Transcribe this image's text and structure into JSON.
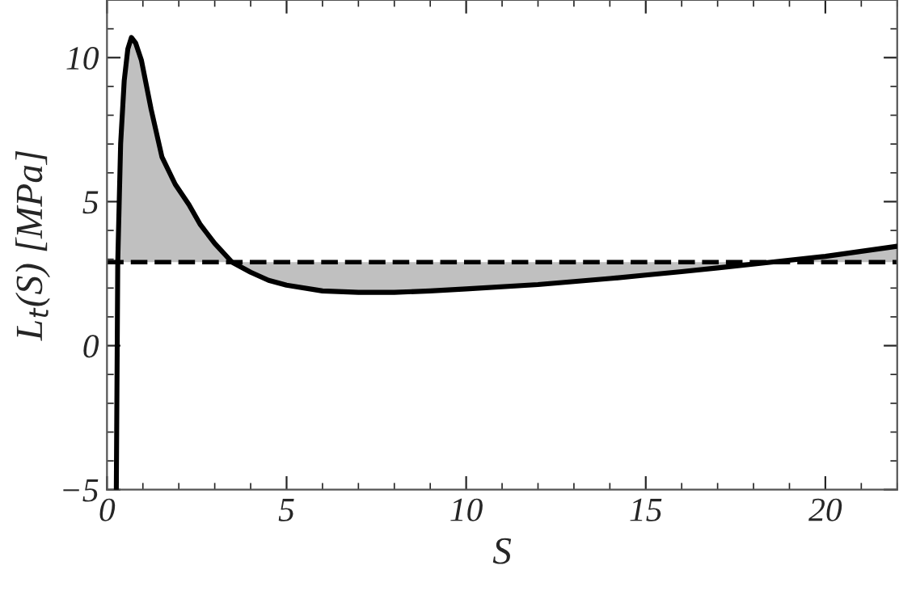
{
  "chart_data": {
    "type": "line",
    "xlabel": "S",
    "ylabel": "L$_{t}$(S) [MPa]",
    "xlim": [
      0,
      22
    ],
    "ylim": [
      -5,
      12
    ],
    "xticks": [
      0,
      5,
      10,
      15,
      20
    ],
    "yticks": [
      -5,
      0,
      5,
      10
    ],
    "series": [
      {
        "color": "#000000",
        "x": [
          0.26,
          0.3,
          0.38,
          0.48,
          0.58,
          0.68,
          0.8,
          0.96,
          1.23,
          1.53,
          1.9,
          2.28,
          2.6,
          3.0,
          3.48,
          4.0,
          4.5,
          5.0,
          6.0,
          7.0,
          8.0,
          9.0,
          10.0,
          12.0,
          14.0,
          15.0,
          16.0,
          17.0,
          18.5,
          20.0,
          22.0
        ],
        "values": [
          -5,
          2.9,
          7.0,
          9.2,
          10.3,
          10.7,
          10.5,
          9.9,
          8.2,
          6.55,
          5.6,
          4.9,
          4.2,
          3.55,
          2.9,
          2.55,
          2.27,
          2.1,
          1.9,
          1.85,
          1.85,
          1.9,
          1.97,
          2.12,
          2.33,
          2.45,
          2.57,
          2.7,
          2.9,
          3.1,
          3.45
        ]
      }
    ],
    "ref_lines": [
      {
        "axis": "y",
        "value": 2.9,
        "color": "#000000",
        "line_style": "dashed"
      }
    ],
    "grid": false,
    "legend": false,
    "line_style": "solid",
    "marker": "none"
  }
}
